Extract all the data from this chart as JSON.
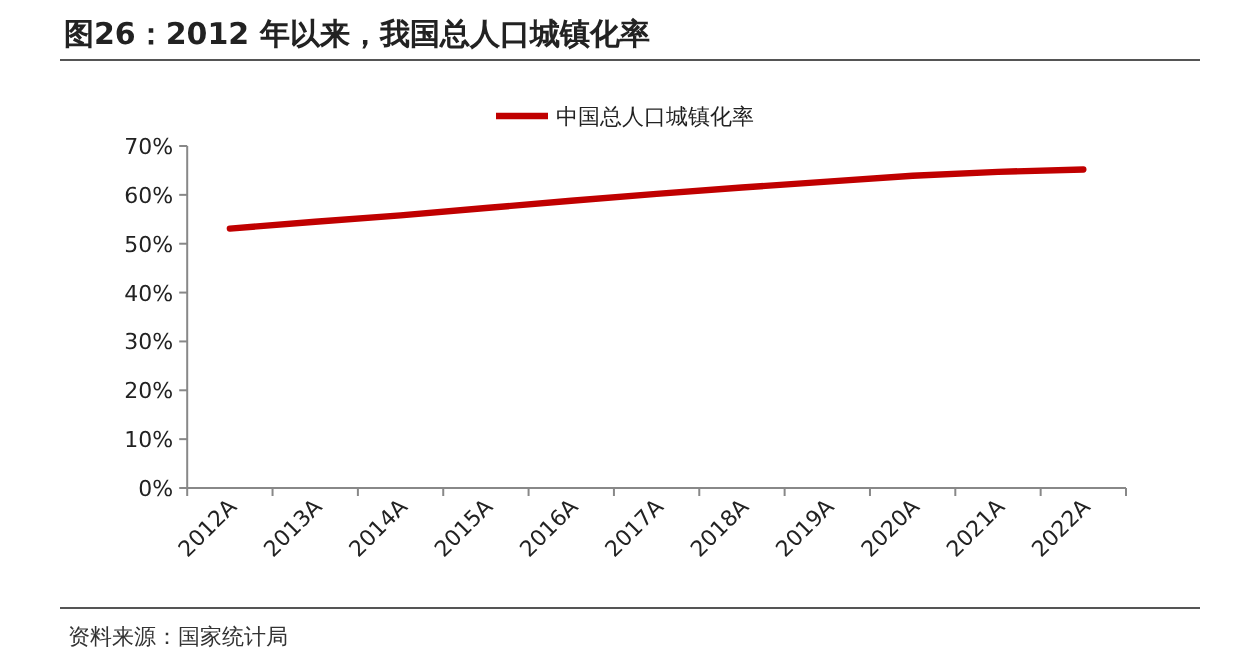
{
  "chart_data": {
    "type": "line",
    "title": "图26：2012 年以来，我国总人口城镇化率",
    "categories": [
      "2012A",
      "2013A",
      "2014A",
      "2015A",
      "2016A",
      "2017A",
      "2018A",
      "2019A",
      "2020A",
      "2021A",
      "2022A"
    ],
    "series": [
      {
        "name": "中国总人口城镇化率",
        "color": "#c00000",
        "values": [
          53.1,
          54.5,
          55.8,
          57.3,
          58.8,
          60.2,
          61.5,
          62.7,
          63.9,
          64.7,
          65.2
        ]
      }
    ],
    "ylim": [
      0,
      70
    ],
    "yticks": [
      {
        "value": 0,
        "label": "0%"
      },
      {
        "value": 10,
        "label": "10%"
      },
      {
        "value": 20,
        "label": "20%"
      },
      {
        "value": 30,
        "label": "30%"
      },
      {
        "value": 40,
        "label": "40%"
      },
      {
        "value": 50,
        "label": "50%"
      },
      {
        "value": 60,
        "label": "60%"
      },
      {
        "value": 70,
        "label": "70%"
      }
    ],
    "legend": "top",
    "annotations": [
      "资料来源：国家统计局"
    ]
  }
}
